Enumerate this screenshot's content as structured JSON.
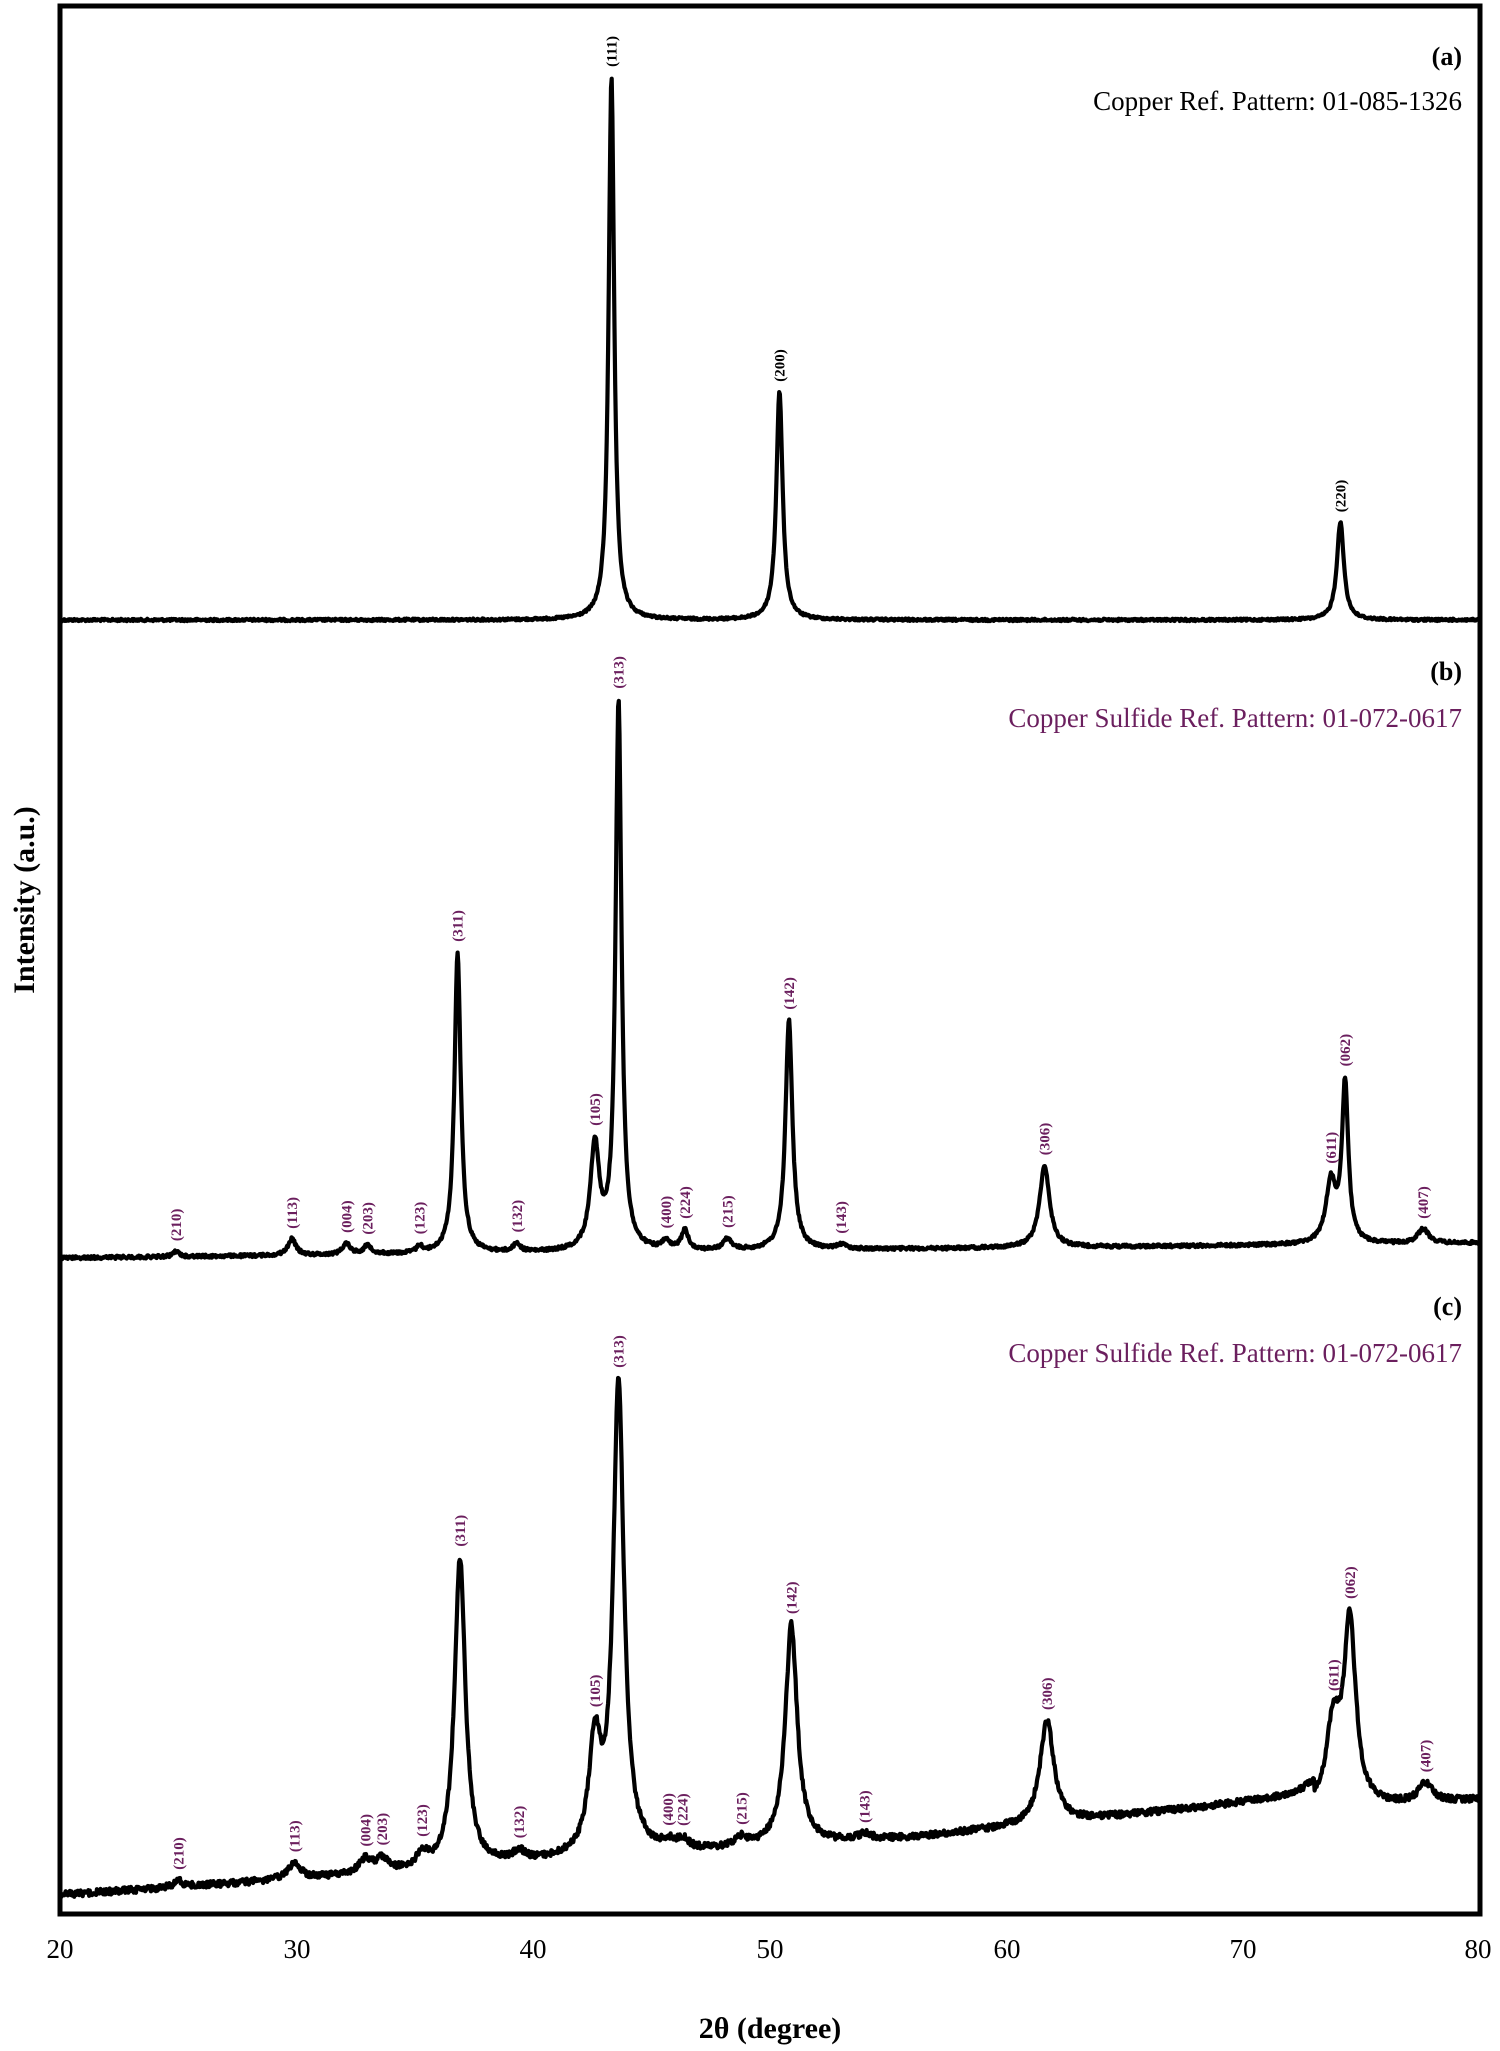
{
  "colors": {
    "trace": "#000000",
    "copper_label": "#000000",
    "sulfide_label": "#6b1f5e",
    "frame": "#000000"
  },
  "chart_data": {
    "type": "line",
    "title": "",
    "xlabel": "2θ (degree)",
    "ylabel": "Intensity (a.u.)",
    "xlim": [
      20,
      80
    ],
    "x_ticks": [
      20,
      30,
      40,
      50,
      60,
      70,
      80
    ],
    "y_ticks": [],
    "grid": false,
    "legend": null,
    "layout": "three vertically stacked XRD patterns sharing the x-axis",
    "panels": [
      {
        "tag": "(a)",
        "reference": "Copper Ref. Pattern: 01-085-1326",
        "label_color": "#000000",
        "baseline_rel": 0.02,
        "peaks": [
          {
            "hkl": "(111)",
            "two_theta": 43.3,
            "rel_intensity": 100,
            "fwhm": 0.28
          },
          {
            "hkl": "(200)",
            "two_theta": 50.4,
            "rel_intensity": 42,
            "fwhm": 0.32
          },
          {
            "hkl": "(220)",
            "two_theta": 74.1,
            "rel_intensity": 18,
            "fwhm": 0.36
          }
        ]
      },
      {
        "tag": "(b)",
        "reference": "Copper Sulfide Ref. Pattern: 01-072-0617",
        "label_color": "#6b1f5e",
        "baseline_rel": 0.0,
        "peaks": [
          {
            "hkl": "(210)",
            "two_theta": 24.9,
            "rel_intensity": 1.0,
            "fwhm": 0.3
          },
          {
            "hkl": "(113)",
            "two_theta": 29.8,
            "rel_intensity": 3.0,
            "fwhm": 0.4
          },
          {
            "hkl": "(004)",
            "two_theta": 32.1,
            "rel_intensity": 2.0,
            "fwhm": 0.4
          },
          {
            "hkl": "(203)",
            "two_theta": 33.0,
            "rel_intensity": 1.6,
            "fwhm": 0.4
          },
          {
            "hkl": "(123)",
            "two_theta": 35.2,
            "rel_intensity": 1.2,
            "fwhm": 0.3
          },
          {
            "hkl": "(311)",
            "two_theta": 36.8,
            "rel_intensity": 55,
            "fwhm": 0.32
          },
          {
            "hkl": "(132)",
            "two_theta": 39.3,
            "rel_intensity": 1.5,
            "fwhm": 0.35
          },
          {
            "hkl": "(105)",
            "two_theta": 42.6,
            "rel_intensity": 19,
            "fwhm": 0.45
          },
          {
            "hkl": "(313)",
            "two_theta": 43.6,
            "rel_intensity": 100,
            "fwhm": 0.3
          },
          {
            "hkl": "(400)",
            "two_theta": 45.6,
            "rel_intensity": 1.5,
            "fwhm": 0.35
          },
          {
            "hkl": "(224)",
            "two_theta": 46.4,
            "rel_intensity": 3.6,
            "fwhm": 0.35
          },
          {
            "hkl": "(215)",
            "two_theta": 48.2,
            "rel_intensity": 2.0,
            "fwhm": 0.4
          },
          {
            "hkl": "(142)",
            "two_theta": 50.8,
            "rel_intensity": 42,
            "fwhm": 0.35
          },
          {
            "hkl": "(143)",
            "two_theta": 53.0,
            "rel_intensity": 0.8,
            "fwhm": 0.5
          },
          {
            "hkl": "(306)",
            "two_theta": 61.6,
            "rel_intensity": 15,
            "fwhm": 0.5
          },
          {
            "hkl": "(611)",
            "two_theta": 73.7,
            "rel_intensity": 11,
            "fwhm": 0.5
          },
          {
            "hkl": "(062)",
            "two_theta": 74.3,
            "rel_intensity": 29,
            "fwhm": 0.32
          },
          {
            "hkl": "(407)",
            "two_theta": 77.6,
            "rel_intensity": 2.6,
            "fwhm": 0.55
          }
        ]
      },
      {
        "tag": "(c)",
        "reference": "Copper Sulfide Ref. Pattern: 01-072-0617",
        "label_color": "#6b1f5e",
        "baseline_rel": 0.0,
        "peaks": [
          {
            "hkl": "(210)",
            "two_theta": 25.0,
            "rel_intensity": 1.5,
            "fwhm": 0.4
          },
          {
            "hkl": "(113)",
            "two_theta": 29.9,
            "rel_intensity": 3.5,
            "fwhm": 0.6
          },
          {
            "hkl": "(004)",
            "two_theta": 32.9,
            "rel_intensity": 3.0,
            "fwhm": 0.6
          },
          {
            "hkl": "(203)",
            "two_theta": 33.6,
            "rel_intensity": 2.8,
            "fwhm": 0.6
          },
          {
            "hkl": "(123)",
            "two_theta": 35.3,
            "rel_intensity": 3.0,
            "fwhm": 0.5
          },
          {
            "hkl": "(311)",
            "two_theta": 36.9,
            "rel_intensity": 66,
            "fwhm": 0.55
          },
          {
            "hkl": "(132)",
            "two_theta": 39.4,
            "rel_intensity": 2.0,
            "fwhm": 0.6
          },
          {
            "hkl": "(105)",
            "two_theta": 42.6,
            "rel_intensity": 23,
            "fwhm": 0.6
          },
          {
            "hkl": "(313)",
            "two_theta": 43.6,
            "rel_intensity": 100,
            "fwhm": 0.55
          },
          {
            "hkl": "(400)",
            "two_theta": 45.7,
            "rel_intensity": 1.5,
            "fwhm": 0.6
          },
          {
            "hkl": "(224)",
            "two_theta": 46.3,
            "rel_intensity": 2.0,
            "fwhm": 0.6
          },
          {
            "hkl": "(215)",
            "two_theta": 48.8,
            "rel_intensity": 1.8,
            "fwhm": 0.6
          },
          {
            "hkl": "(142)",
            "two_theta": 50.9,
            "rel_intensity": 47,
            "fwhm": 0.6
          },
          {
            "hkl": "(143)",
            "two_theta": 54.0,
            "rel_intensity": 1.2,
            "fwhm": 0.7
          },
          {
            "hkl": "(306)",
            "two_theta": 61.7,
            "rel_intensity": 22,
            "fwhm": 0.7
          },
          {
            "hkl": "(611)",
            "two_theta": 73.8,
            "rel_intensity": 17,
            "fwhm": 0.7
          },
          {
            "hkl": "(062)",
            "two_theta": 74.5,
            "rel_intensity": 39,
            "fwhm": 0.6
          },
          {
            "hkl": "(407)",
            "two_theta": 77.7,
            "rel_intensity": 4.0,
            "fwhm": 0.7
          }
        ]
      }
    ]
  },
  "axis": {
    "xlabel": "2θ (degree)",
    "ylabel": "Intensity (a.u.)",
    "ticks": [
      "20",
      "30",
      "40",
      "50",
      "60",
      "70",
      "80"
    ]
  },
  "panels": [
    {
      "tag": "(a)",
      "reference": "Copper Ref. Pattern: 01-085-1326"
    },
    {
      "tag": "(b)",
      "reference": "Copper Sulfide Ref. Pattern: 01-072-0617"
    },
    {
      "tag": "(c)",
      "reference": "Copper Sulfide Ref. Pattern: 01-072-0617"
    }
  ]
}
